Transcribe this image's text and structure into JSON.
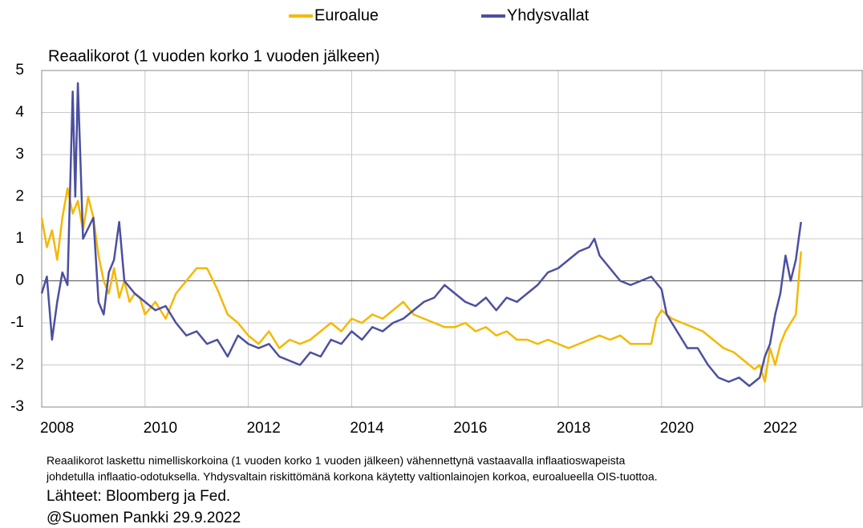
{
  "chart_data": {
    "type": "line",
    "title": "Reaalikorot (1 vuoden korko 1 vuoden jälkeen)",
    "legend": "top",
    "grid": true,
    "xlim": [
      2008,
      2023.9
    ],
    "xticks": [
      2008,
      2010,
      2012,
      2014,
      2016,
      2018,
      2020,
      2022
    ],
    "ylim": [
      -3,
      5
    ],
    "yticks": [
      -3,
      -2,
      -1,
      0,
      1,
      2,
      3,
      4,
      5
    ],
    "series": [
      {
        "name": "Euroalue",
        "color": "#f5b800",
        "x": [
          2008.0,
          2008.1,
          2008.2,
          2008.3,
          2008.4,
          2008.5,
          2008.6,
          2008.7,
          2008.8,
          2008.9,
          2009.0,
          2009.1,
          2009.2,
          2009.3,
          2009.4,
          2009.5,
          2009.6,
          2009.7,
          2009.8,
          2009.9,
          2010.0,
          2010.2,
          2010.4,
          2010.6,
          2010.8,
          2011.0,
          2011.2,
          2011.4,
          2011.6,
          2011.8,
          2012.0,
          2012.2,
          2012.4,
          2012.6,
          2012.8,
          2013.0,
          2013.2,
          2013.4,
          2013.6,
          2013.8,
          2014.0,
          2014.2,
          2014.4,
          2014.6,
          2014.8,
          2015.0,
          2015.2,
          2015.4,
          2015.6,
          2015.8,
          2016.0,
          2016.2,
          2016.4,
          2016.6,
          2016.8,
          2017.0,
          2017.2,
          2017.4,
          2017.6,
          2017.8,
          2018.0,
          2018.2,
          2018.4,
          2018.6,
          2018.8,
          2019.0,
          2019.2,
          2019.4,
          2019.6,
          2019.8,
          2019.9,
          2020.0,
          2020.2,
          2020.4,
          2020.6,
          2020.8,
          2021.0,
          2021.2,
          2021.4,
          2021.6,
          2021.8,
          2021.9,
          2022.0,
          2022.1,
          2022.2,
          2022.3,
          2022.4,
          2022.5,
          2022.6,
          2022.7
        ],
        "values": [
          1.5,
          0.8,
          1.2,
          0.5,
          1.5,
          2.2,
          1.6,
          1.9,
          1.2,
          2.0,
          1.5,
          0.6,
          0.0,
          -0.3,
          0.3,
          -0.4,
          0.0,
          -0.5,
          -0.3,
          -0.4,
          -0.8,
          -0.5,
          -0.9,
          -0.3,
          0.0,
          0.3,
          0.3,
          -0.2,
          -0.8,
          -1.0,
          -1.3,
          -1.5,
          -1.2,
          -1.6,
          -1.4,
          -1.5,
          -1.4,
          -1.2,
          -1.0,
          -1.2,
          -0.9,
          -1.0,
          -0.8,
          -0.9,
          -0.7,
          -0.5,
          -0.8,
          -0.9,
          -1.0,
          -1.1,
          -1.1,
          -1.0,
          -1.2,
          -1.1,
          -1.3,
          -1.2,
          -1.4,
          -1.4,
          -1.5,
          -1.4,
          -1.5,
          -1.6,
          -1.5,
          -1.4,
          -1.3,
          -1.4,
          -1.3,
          -1.5,
          -1.5,
          -1.5,
          -0.9,
          -0.7,
          -0.9,
          -1.0,
          -1.1,
          -1.2,
          -1.4,
          -1.6,
          -1.7,
          -1.9,
          -2.1,
          -2.0,
          -2.4,
          -1.6,
          -2.0,
          -1.5,
          -1.2,
          -1.0,
          -0.8,
          0.7
        ]
      },
      {
        "name": "Yhdysvallat",
        "color": "#4b4fa0",
        "x": [
          2008.0,
          2008.1,
          2008.2,
          2008.3,
          2008.4,
          2008.5,
          2008.6,
          2008.65,
          2008.7,
          2008.8,
          2009.0,
          2009.1,
          2009.2,
          2009.3,
          2009.4,
          2009.5,
          2009.6,
          2009.8,
          2010.0,
          2010.2,
          2010.4,
          2010.6,
          2010.8,
          2011.0,
          2011.2,
          2011.4,
          2011.6,
          2011.8,
          2012.0,
          2012.2,
          2012.4,
          2012.6,
          2012.8,
          2013.0,
          2013.2,
          2013.4,
          2013.6,
          2013.8,
          2014.0,
          2014.2,
          2014.4,
          2014.6,
          2014.8,
          2015.0,
          2015.2,
          2015.4,
          2015.6,
          2015.8,
          2016.0,
          2016.2,
          2016.4,
          2016.6,
          2016.8,
          2017.0,
          2017.2,
          2017.4,
          2017.6,
          2017.8,
          2018.0,
          2018.2,
          2018.4,
          2018.6,
          2018.7,
          2018.8,
          2019.0,
          2019.2,
          2019.4,
          2019.6,
          2019.8,
          2020.0,
          2020.1,
          2020.3,
          2020.5,
          2020.7,
          2020.9,
          2021.1,
          2021.3,
          2021.5,
          2021.7,
          2021.9,
          2022.0,
          2022.1,
          2022.2,
          2022.3,
          2022.4,
          2022.5,
          2022.6,
          2022.7
        ],
        "values": [
          -0.3,
          0.1,
          -1.4,
          -0.5,
          0.2,
          -0.1,
          4.5,
          2.0,
          4.7,
          1.0,
          1.5,
          -0.5,
          -0.8,
          0.2,
          0.5,
          1.4,
          0.0,
          -0.3,
          -0.5,
          -0.7,
          -0.6,
          -1.0,
          -1.3,
          -1.2,
          -1.5,
          -1.4,
          -1.8,
          -1.3,
          -1.5,
          -1.6,
          -1.5,
          -1.8,
          -1.9,
          -2.0,
          -1.7,
          -1.8,
          -1.4,
          -1.5,
          -1.2,
          -1.4,
          -1.1,
          -1.2,
          -1.0,
          -0.9,
          -0.7,
          -0.5,
          -0.4,
          -0.1,
          -0.3,
          -0.5,
          -0.6,
          -0.4,
          -0.7,
          -0.4,
          -0.5,
          -0.3,
          -0.1,
          0.2,
          0.3,
          0.5,
          0.7,
          0.8,
          1.0,
          0.6,
          0.3,
          0.0,
          -0.1,
          0.0,
          0.1,
          -0.2,
          -0.8,
          -1.2,
          -1.6,
          -1.6,
          -2.0,
          -2.3,
          -2.4,
          -2.3,
          -2.5,
          -2.3,
          -1.8,
          -1.5,
          -0.8,
          -0.3,
          0.6,
          0.0,
          0.5,
          1.4
        ]
      }
    ],
    "notes": [
      "Reaalikorot laskettu nimelliskorkoina (1 vuoden korko 1 vuoden jälkeen) vähennettynä vastaavalla inflaatioswapeista",
      "johdetulla inflaatio-odotuksella. Yhdysvaltain riskittömänä korkona käytetty valtionlainojen korkoa, euroalueella OIS-tuottoa."
    ],
    "source": "Lähteet: Bloomberg ja Fed.",
    "credit": "@Suomen Pankki 29.9.2022"
  }
}
